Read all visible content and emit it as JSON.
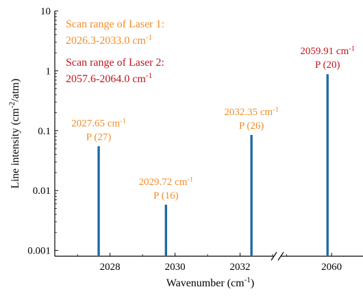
{
  "chart_data": {
    "type": "bar",
    "xlabel": "Wavenumber (cm",
    "xlabel_sup": "-1",
    "xlabel_tail": ")",
    "ylabel": "Line intensity (cm",
    "ylabel_sup1": "-2",
    "ylabel_mid": "/atm)",
    "yscale": "log",
    "ylim": [
      0.0008,
      10
    ],
    "yticks": [
      0.001,
      0.01,
      0.1,
      1,
      10
    ],
    "ytick_labels": [
      "0.001",
      "0.01",
      "0.1",
      "1",
      "10"
    ],
    "x_break": true,
    "xlim_segment1": [
      2026.3,
      2033.0
    ],
    "xlim_segment2": [
      2058.9,
      2060.7
    ],
    "xticks": [
      2028,
      2030,
      2032,
      2060
    ],
    "xtick_labels": [
      "2028",
      "2030",
      "2032",
      "2060"
    ],
    "bar_color": "#1f6aa5",
    "colors": {
      "laser1": "#f28c28",
      "laser2": "#c0141c"
    },
    "bars": [
      {
        "x": 2027.65,
        "value": 0.055,
        "label": "2027.65 cm",
        "label_sup": "-1",
        "line": "P (27)",
        "laser": "laser1"
      },
      {
        "x": 2029.72,
        "value": 0.0058,
        "label": "2029.72 cm",
        "label_sup": "-1",
        "line": "P (16)",
        "laser": "laser1"
      },
      {
        "x": 2032.35,
        "value": 0.085,
        "label": "2032.35 cm",
        "label_sup": "-1",
        "line": "P (26)",
        "laser": "laser1"
      },
      {
        "x": 2059.91,
        "value": 0.88,
        "label": "2059.91 cm",
        "label_sup": "-1",
        "line": "P (20)",
        "laser": "laser2"
      }
    ],
    "annotations": [
      {
        "line1": "Scan range of Laser 1:",
        "line2": "2026.3-2033.0 cm",
        "sup": "-1",
        "laser": "laser1"
      },
      {
        "line1": "Scan range of Laser 2:",
        "line2": "2057.6-2064.0 cm",
        "sup": "-1",
        "laser": "laser2"
      }
    ]
  }
}
